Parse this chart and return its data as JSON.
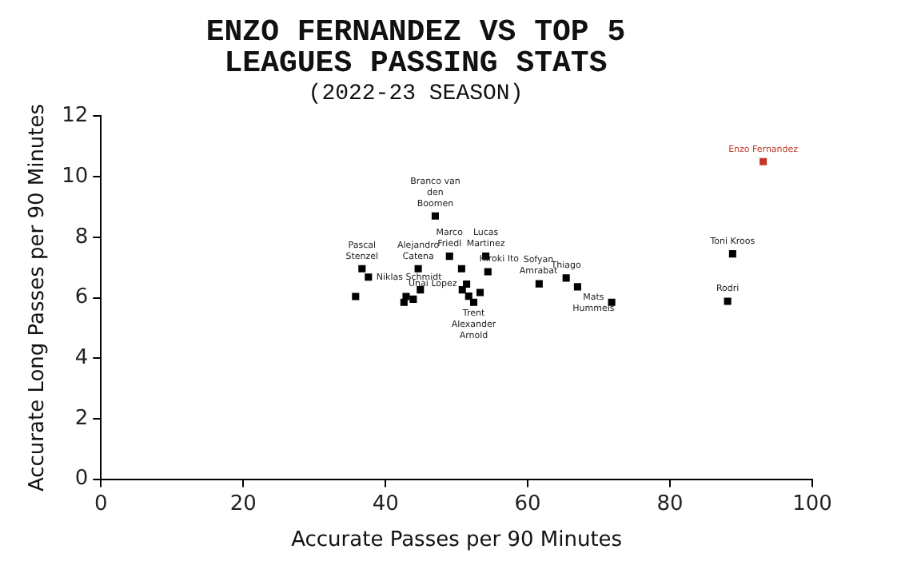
{
  "chart_data": {
    "type": "scatter",
    "title": "ENZO FERNANDEZ VS TOP 5 LEAGUES PASSING STATS",
    "subtitle": "(2022-23 SEASON)",
    "xlabel": "Accurate Passes per 90 Minutes",
    "ylabel": "Accurate Long Passes per 90 Minutes",
    "xlim": [
      0,
      100
    ],
    "xticks": [
      0,
      20,
      40,
      60,
      80,
      100
    ],
    "ylim": [
      0,
      12
    ],
    "yticks": [
      0,
      2,
      4,
      6,
      8,
      10,
      12
    ],
    "grid": false,
    "legend": false,
    "marker": "square",
    "series": [
      {
        "color": "#000000",
        "x": [
          47.0,
          49.0,
          54.1,
          54.4,
          36.7,
          37.6,
          44.6,
          50.7,
          51.4,
          50.8,
          53.3,
          51.7,
          52.4,
          44.9,
          42.9,
          43.9,
          42.6,
          35.8,
          61.6,
          65.4,
          67.0,
          71.8,
          88.8,
          88.1
        ],
        "values": [
          8.7,
          7.37,
          7.37,
          6.86,
          6.96,
          6.68,
          6.96,
          6.96,
          6.45,
          6.26,
          6.17,
          6.05,
          5.85,
          6.26,
          6.04,
          5.95,
          5.85,
          6.04,
          6.46,
          6.65,
          6.36,
          5.85,
          7.45,
          5.88
        ]
      },
      {
        "color": "#c0392b",
        "x": [
          93.1
        ],
        "values": [
          10.5
        ]
      }
    ],
    "annotations": [
      {
        "text": "Branco van den Boomen",
        "x": 47.0,
        "y": 8.7
      },
      {
        "text": "Marco Friedl",
        "x": 49.0,
        "y": 7.37
      },
      {
        "text": "Lucas Martinez",
        "x": 54.1,
        "y": 7.37
      },
      {
        "text": "Hiroki Ito",
        "x": 54.4,
        "y": 6.86
      },
      {
        "text": "Pascal Stenzel",
        "x": 36.7,
        "y": 6.96
      },
      {
        "text": "Niklas Schmidt",
        "x": 37.6,
        "y": 6.68
      },
      {
        "text": "Alejandro Catena",
        "x": 44.6,
        "y": 6.96
      },
      {
        "text": "Unai Lopez",
        "x": 51.4,
        "y": 6.45
      },
      {
        "text": "Trent Alexander Arnold",
        "x": 52.4,
        "y": 5.85
      },
      {
        "text": "Sofyan Amrabat",
        "x": 61.5,
        "y": 6.46
      },
      {
        "text": "Thiago",
        "x": 65.4,
        "y": 6.65
      },
      {
        "text": "Mats Hummels",
        "x": 67.0,
        "y": 6.36
      },
      {
        "text": "Toni Kroos",
        "x": 88.8,
        "y": 7.45
      },
      {
        "text": "Rodri",
        "x": 88.1,
        "y": 5.88
      },
      {
        "text": "Enzo Fernandez",
        "x": 93.1,
        "y": 10.5
      }
    ]
  }
}
